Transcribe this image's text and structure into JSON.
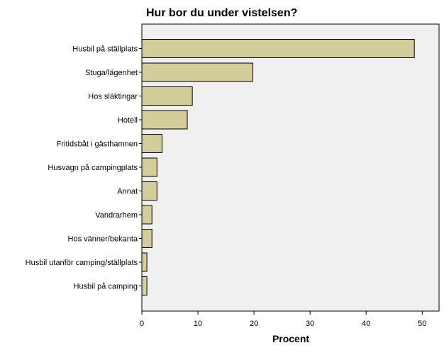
{
  "chart_data": {
    "type": "bar",
    "orientation": "horizontal",
    "title": "Hur bor du under vistelsen?",
    "xlabel": "Procent",
    "ylabel": "",
    "xlim": [
      0,
      53
    ],
    "xticks": [
      0,
      10,
      20,
      30,
      40,
      50
    ],
    "grid": false,
    "categories": [
      "Husbil på ställplats",
      "Stuga/lägenhet",
      "Hos släktingar",
      "Hotell",
      "Fritidsbåt i gästhamnen",
      "Husvagn på campingplats",
      "Annat",
      "Vandrarhem",
      "Hos vänner/bekanta",
      "Husbil utanför camping/ställplats",
      "Husbil på camping"
    ],
    "values": [
      48.6,
      19.8,
      9.0,
      8.1,
      3.6,
      2.7,
      2.7,
      1.8,
      1.8,
      0.9,
      0.9
    ],
    "colors": {
      "bar_fill": "#d3cd9b",
      "bar_stroke": "#000000",
      "plot_background": "#f0f0f0",
      "axis": "#000000"
    }
  }
}
